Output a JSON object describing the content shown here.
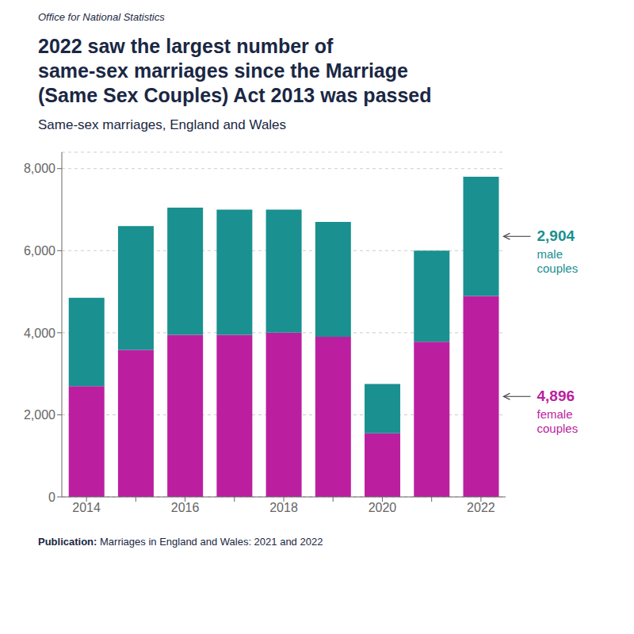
{
  "chart_data": {
    "type": "bar",
    "stacked": true,
    "source": "Office for National Statistics",
    "title": "2022 saw the largest number of\nsame-sex marriages since the Marriage\n(Same Sex Couples) Act 2013 was passed",
    "subtitle": "Same-sex marriages, England and Wales",
    "categories": [
      "2014",
      null,
      "2016",
      null,
      "2018",
      null,
      "2020",
      null,
      "2022"
    ],
    "series": [
      {
        "name": "female\ncouples",
        "color": "#bb1fa0",
        "values": [
          2700,
          3580,
          3950,
          3950,
          4000,
          3900,
          1550,
          3780,
          4896
        ]
      },
      {
        "name": "male\ncouples",
        "color": "#1a9090",
        "values": [
          2150,
          3020,
          3100,
          3050,
          3000,
          2800,
          1200,
          2220,
          2904
        ]
      }
    ],
    "annotations": [
      {
        "series": "male\ncouples",
        "text": "2,904"
      },
      {
        "series": "female\ncouples",
        "text": "4,896"
      }
    ],
    "ylim": [
      0,
      8400
    ],
    "yticks": [
      0,
      {
        "value": 2000,
        "label": "2,000"
      },
      {
        "value": 4000,
        "label": "4,000"
      },
      {
        "value": 6000,
        "label": "6,000"
      },
      {
        "value": 8000,
        "label": "8,000"
      }
    ],
    "grid": true,
    "note_label": "Publication:",
    "note": " Marriages in England and Wales: 2021 and 2022"
  }
}
